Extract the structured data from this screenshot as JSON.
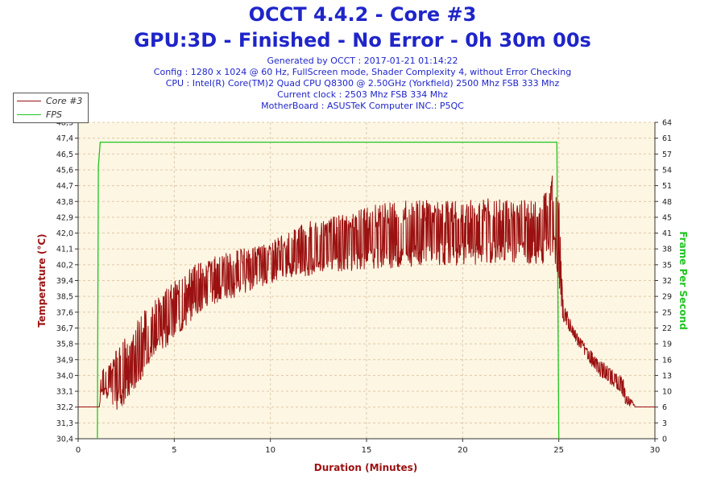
{
  "header": {
    "title": "OCCT 4.4.2 - Core #3",
    "subtitle": "GPU:3D - Finished - No Error - 0h 30m 00s",
    "info": [
      "Generated by OCCT : 2017-01-21 01:14:22",
      "Config : 1280 x 1024 @ 60 Hz, FullScreen mode, Shader Complexity 4, without Error Checking",
      "CPU : Intel(R) Core(TM)2 Quad CPU Q8300 @ 2.50GHz (Yorkfield) 2500 Mhz FSB 333 Mhz",
      "Current clock : 2503 Mhz FSB 334 Mhz",
      "MotherBoard : ASUSTeK Computer INC.: P5QC"
    ]
  },
  "colors": {
    "temperature": "#9b1111",
    "fps": "#22c422",
    "plot_bg": "#fdf6e3",
    "grid": "#e0c9a8",
    "title": "#1f25c9"
  },
  "chart_data": {
    "type": "line",
    "title": "OCCT 4.4.2 - Core #3",
    "xlabel": "Duration (Minutes)",
    "ylabel_left": "Temperature (°C)",
    "ylabel_right": "Frame Per Second",
    "xlim": [
      0,
      30
    ],
    "x_ticks": [
      0,
      5,
      10,
      15,
      20,
      25,
      30
    ],
    "ylim_left": [
      30.4,
      48.3
    ],
    "y_ticks_left": [
      "30,4",
      "31,3",
      "32,2",
      "33,1",
      "34,0",
      "34,9",
      "35,8",
      "36,7",
      "37,6",
      "38,5",
      "39,4",
      "40,2",
      "41,1",
      "42,0",
      "42,9",
      "43,8",
      "44,7",
      "45,6",
      "46,5",
      "47,4",
      "48,3"
    ],
    "ylim_right": [
      0,
      64
    ],
    "y_ticks_right": [
      0,
      3,
      6,
      10,
      13,
      16,
      19,
      22,
      25,
      29,
      32,
      35,
      38,
      41,
      45,
      48,
      51,
      54,
      57,
      61,
      64
    ],
    "grid": true,
    "legend_position": "top-left",
    "series": [
      {
        "name": "Core #3",
        "axis": "left",
        "style": "noisy",
        "x": [
          0,
          1.1,
          1.2,
          2,
          2.5,
          3,
          3.5,
          4,
          4.5,
          5,
          5.5,
          6,
          7,
          8,
          9,
          10,
          11,
          12,
          13,
          14,
          15,
          16,
          17,
          18,
          19,
          20,
          21,
          22,
          23,
          24,
          24.8,
          25.0,
          25.2,
          25.5,
          26,
          26.5,
          27,
          27.5,
          28,
          28.3,
          28.5,
          28.8,
          29,
          30
        ],
        "low": [
          32.2,
          32.2,
          33.0,
          32.0,
          32.4,
          33.2,
          34.2,
          35.0,
          35.5,
          36.0,
          36.5,
          37.2,
          38.0,
          38.3,
          38.8,
          39.2,
          39.5,
          39.6,
          39.8,
          39.9,
          39.9,
          40.0,
          40.1,
          40.2,
          40.2,
          40.2,
          40.2,
          40.3,
          40.3,
          40.3,
          40.3,
          39.3,
          37.0,
          36.5,
          35.6,
          34.8,
          34.0,
          33.6,
          33.2,
          32.8,
          32.3,
          32.2,
          32.2,
          32.2
        ],
        "high": [
          32.2,
          32.2,
          34.2,
          35.6,
          36.2,
          37.0,
          37.8,
          38.3,
          38.8,
          39.3,
          39.7,
          40.2,
          40.7,
          41.0,
          41.3,
          41.5,
          42.2,
          42.7,
          42.9,
          43.2,
          43.5,
          43.8,
          43.9,
          43.9,
          43.9,
          43.9,
          44.0,
          44.0,
          44.0,
          44.0,
          45.9,
          44.5,
          38.5,
          37.4,
          36.3,
          35.6,
          35.0,
          34.6,
          34.2,
          34.0,
          33.0,
          32.6,
          32.2,
          32.2
        ]
      },
      {
        "name": "FPS",
        "axis": "right",
        "x": [
          1.0,
          1.05,
          1.15,
          1.2,
          24.9,
          24.95,
          25.0
        ],
        "y": [
          0,
          55,
          60,
          60,
          60,
          30,
          0
        ]
      }
    ]
  }
}
